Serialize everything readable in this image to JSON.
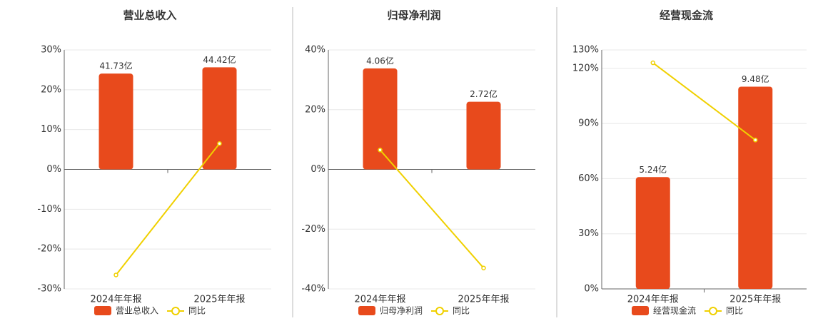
{
  "chart_data": [
    {
      "type": "bar-line",
      "title": "营业总收入",
      "categories": [
        "2024年年报",
        "2025年年报"
      ],
      "series": [
        {
          "name": "营业总收入",
          "color": "#e84a1c",
          "axis": "y2",
          "values": [
            41.73,
            44.42
          ],
          "value_labels": [
            "41.73亿",
            "44.42亿"
          ]
        },
        {
          "name": "同比",
          "color": "#f0d000",
          "values": [
            -26.5,
            6.5
          ]
        }
      ],
      "ylim": [
        -30,
        30
      ],
      "yticks": [
        {
          "value": -30,
          "label": "-30%"
        },
        {
          "value": -20,
          "label": "-20%"
        },
        {
          "value": -10,
          "label": "-10%"
        },
        {
          "value": 0,
          "label": "0%"
        },
        {
          "value": 10,
          "label": "10%"
        },
        {
          "value": 20,
          "label": "20%"
        },
        {
          "value": 30,
          "label": "30%"
        }
      ],
      "y2lim": [
        -52,
        52
      ],
      "grid": true
    },
    {
      "type": "bar-line",
      "title": "归母净利润",
      "categories": [
        "2024年年报",
        "2025年年报"
      ],
      "series": [
        {
          "name": "归母净利润",
          "color": "#e84a1c",
          "axis": "y2",
          "values": [
            4.06,
            2.72
          ],
          "value_labels": [
            "4.06亿",
            "2.72亿"
          ]
        },
        {
          "name": "同比",
          "color": "#f0d000",
          "values": [
            6.5,
            -33
          ]
        }
      ],
      "ylim": [
        -40,
        40
      ],
      "yticks": [
        {
          "value": -40,
          "label": "-40%"
        },
        {
          "value": -20,
          "label": "-20%"
        },
        {
          "value": 0,
          "label": "0%"
        },
        {
          "value": 20,
          "label": "20%"
        },
        {
          "value": 40,
          "label": "40%"
        }
      ],
      "y2lim": [
        -4.8,
        4.8
      ],
      "grid": true
    },
    {
      "type": "bar-line",
      "title": "经营现金流",
      "categories": [
        "2024年年报",
        "2025年年报"
      ],
      "series": [
        {
          "name": "经营现金流",
          "color": "#e84a1c",
          "axis": "y2",
          "values": [
            5.24,
            9.48
          ],
          "value_labels": [
            "5.24亿",
            "9.48亿"
          ]
        },
        {
          "name": "同比",
          "color": "#f0d000",
          "values": [
            123,
            81
          ]
        }
      ],
      "ylim": [
        0,
        130
      ],
      "yticks": [
        {
          "value": 0,
          "label": "0%"
        },
        {
          "value": 30,
          "label": "30%"
        },
        {
          "value": 60,
          "label": "60%"
        },
        {
          "value": 90,
          "label": "90%"
        },
        {
          "value": 120,
          "label": "120%"
        },
        {
          "value": 130,
          "label": "130%"
        }
      ],
      "y2lim": [
        0,
        11.2
      ],
      "grid": true
    }
  ]
}
